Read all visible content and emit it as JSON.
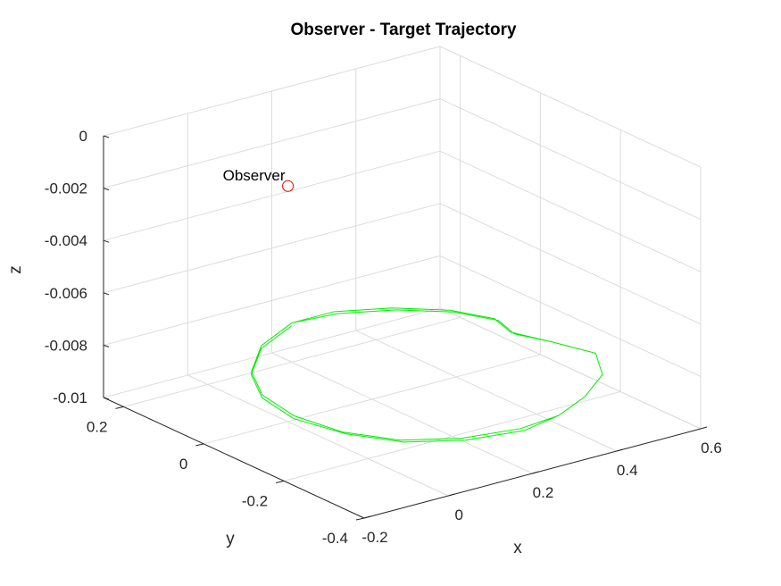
{
  "chart_data": {
    "type": "line3d",
    "title": "Observer - Target Trajectory",
    "xlabel": "x",
    "ylabel": "y",
    "zlabel": "z",
    "xlim": [
      -0.2,
      0.6
    ],
    "ylim": [
      -0.4,
      0.25
    ],
    "zlim": [
      -0.01,
      0
    ],
    "xticks": [
      -0.2,
      0,
      0.2,
      0.4,
      0.6
    ],
    "yticks": [
      0.2,
      0,
      -0.2,
      -0.4
    ],
    "zticks": [
      0,
      -0.002,
      -0.004,
      -0.006,
      -0.008,
      -0.01
    ],
    "xtick_labels": [
      "-0.2",
      "0",
      "0.2",
      "0.4",
      "0.6"
    ],
    "ytick_labels": [
      "0.2",
      "0",
      "-0.2",
      "-0.4"
    ],
    "ztick_labels": [
      "0",
      "-0.002",
      "-0.004",
      "-0.006",
      "-0.008",
      "-0.01"
    ],
    "grid": true,
    "series": [
      {
        "kind": "marker",
        "color": "#ff0000",
        "marker": "circle",
        "x": 0,
        "y": 0,
        "z": -0.001,
        "label": "Observer"
      },
      {
        "kind": "line",
        "color": "#00ee00",
        "description_loops": 2,
        "x": [
          0.2,
          0.3,
          0.4,
          0.48,
          0.52,
          0.5,
          0.53,
          0.56,
          0.5,
          0.4,
          0.3,
          0.2,
          0.08,
          -0.02,
          -0.08,
          -0.1,
          -0.08,
          -0.02,
          0.08,
          0.2,
          0.3,
          0.4,
          0.48,
          0.52,
          0.5,
          0.53,
          0.56,
          0.5,
          0.4,
          0.3,
          0.2,
          0.08,
          -0.02,
          -0.08,
          -0.11,
          -0.09,
          -0.03,
          0.07,
          0.19
        ],
        "y": [
          0.2,
          0.19,
          0.15,
          0.09,
          0.02,
          -0.04,
          -0.1,
          -0.18,
          -0.26,
          -0.32,
          -0.36,
          -0.37,
          -0.35,
          -0.3,
          -0.22,
          -0.12,
          -0.02,
          0.07,
          0.15,
          0.2,
          0.2,
          0.16,
          0.1,
          0.03,
          -0.03,
          -0.1,
          -0.18,
          -0.26,
          -0.32,
          -0.36,
          -0.38,
          -0.36,
          -0.31,
          -0.23,
          -0.13,
          -0.03,
          0.06,
          0.14,
          0.19
        ],
        "z": [
          -0.0085,
          -0.0085,
          -0.0085,
          -0.0085,
          -0.0085,
          -0.0085,
          -0.0085,
          -0.0085,
          -0.0085,
          -0.0085,
          -0.0085,
          -0.0085,
          -0.0085,
          -0.0085,
          -0.0085,
          -0.0085,
          -0.0085,
          -0.0085,
          -0.0085,
          -0.0085,
          -0.0085,
          -0.0085,
          -0.0085,
          -0.0085,
          -0.0085,
          -0.0085,
          -0.0085,
          -0.0085,
          -0.0085,
          -0.0085,
          -0.0085,
          -0.0085,
          -0.0085,
          -0.0085,
          -0.0085,
          -0.0085,
          -0.0085,
          -0.0085,
          -0.0085
        ]
      }
    ]
  }
}
